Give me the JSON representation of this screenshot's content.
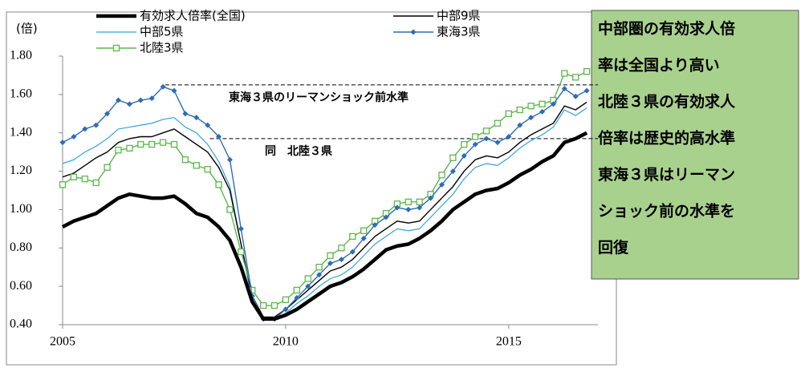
{
  "chart_data": {
    "type": "line",
    "y_label": "(倍)",
    "x": [
      2005,
      2005.25,
      2005.5,
      2005.75,
      2006,
      2006.25,
      2006.5,
      2006.75,
      2007,
      2007.25,
      2007.5,
      2007.75,
      2008,
      2008.25,
      2008.5,
      2008.75,
      2009,
      2009.25,
      2009.5,
      2009.75,
      2010,
      2010.25,
      2010.5,
      2010.75,
      2011,
      2011.25,
      2011.5,
      2011.75,
      2012,
      2012.25,
      2012.5,
      2012.75,
      2013,
      2013.25,
      2013.5,
      2013.75,
      2014,
      2014.25,
      2014.5,
      2014.75,
      2015,
      2015.25,
      2015.5,
      2015.75,
      2016,
      2016.25,
      2016.5,
      2016.75
    ],
    "xlim": [
      2005,
      2017
    ],
    "xticks": [
      2005,
      2010,
      2015
    ],
    "ylim": [
      0.4,
      1.8
    ],
    "yticks": [
      {
        "value": 0.4,
        "label": "0.40"
      },
      {
        "value": 0.6,
        "label": "0.60"
      },
      {
        "value": 0.8,
        "label": "0.80"
      },
      {
        "value": 1.0,
        "label": "1.00"
      },
      {
        "value": 1.2,
        "label": "1.20"
      },
      {
        "value": 1.4,
        "label": "1.40"
      },
      {
        "value": 1.6,
        "label": "1.60"
      },
      {
        "value": 1.8,
        "label": "1.80"
      }
    ],
    "series": [
      {
        "name": "有効求人倍率(全国)",
        "color": "#000000",
        "values": [
          0.91,
          0.94,
          0.96,
          0.98,
          1.02,
          1.06,
          1.08,
          1.07,
          1.06,
          1.06,
          1.07,
          1.03,
          0.98,
          0.96,
          0.91,
          0.84,
          0.7,
          0.52,
          0.43,
          0.43,
          0.45,
          0.48,
          0.52,
          0.56,
          0.6,
          0.62,
          0.65,
          0.69,
          0.74,
          0.79,
          0.81,
          0.82,
          0.85,
          0.89,
          0.94,
          1.0,
          1.04,
          1.08,
          1.1,
          1.11,
          1.14,
          1.18,
          1.21,
          1.25,
          1.28,
          1.35,
          1.37,
          1.4
        ]
      },
      {
        "name": "中部9県",
        "color": "#000000",
        "values": [
          1.17,
          1.19,
          1.23,
          1.27,
          1.3,
          1.35,
          1.37,
          1.38,
          1.38,
          1.4,
          1.42,
          1.38,
          1.34,
          1.3,
          1.22,
          1.1,
          0.82,
          0.55,
          0.44,
          0.44,
          0.48,
          0.53,
          0.58,
          0.63,
          0.68,
          0.7,
          0.74,
          0.8,
          0.86,
          0.9,
          0.94,
          0.93,
          0.94,
          1.0,
          1.06,
          1.12,
          1.2,
          1.26,
          1.28,
          1.27,
          1.3,
          1.35,
          1.39,
          1.42,
          1.45,
          1.54,
          1.52,
          1.56
        ]
      },
      {
        "name": "中部5県",
        "color": "#33a3dc",
        "values": [
          1.24,
          1.26,
          1.3,
          1.33,
          1.37,
          1.42,
          1.43,
          1.44,
          1.45,
          1.47,
          1.48,
          1.43,
          1.4,
          1.34,
          1.25,
          1.12,
          0.82,
          0.52,
          0.43,
          0.43,
          0.46,
          0.51,
          0.55,
          0.6,
          0.64,
          0.66,
          0.7,
          0.76,
          0.82,
          0.86,
          0.9,
          0.89,
          0.9,
          0.96,
          1.02,
          1.08,
          1.16,
          1.22,
          1.24,
          1.23,
          1.27,
          1.32,
          1.36,
          1.39,
          1.43,
          1.52,
          1.49,
          1.53
        ]
      },
      {
        "name": "東海3県",
        "color": "#2e6db4",
        "values": [
          1.35,
          1.38,
          1.42,
          1.44,
          1.5,
          1.57,
          1.55,
          1.57,
          1.58,
          1.64,
          1.62,
          1.5,
          1.48,
          1.44,
          1.38,
          1.26,
          0.9,
          0.55,
          0.43,
          0.43,
          0.48,
          0.54,
          0.6,
          0.66,
          0.72,
          0.74,
          0.78,
          0.85,
          0.92,
          0.96,
          1.01,
          1.0,
          1.01,
          1.06,
          1.13,
          1.2,
          1.28,
          1.34,
          1.37,
          1.35,
          1.38,
          1.44,
          1.48,
          1.51,
          1.55,
          1.63,
          1.59,
          1.62
        ]
      },
      {
        "name": "北陸3県",
        "color": "#5cb84a",
        "values": [
          1.13,
          1.17,
          1.16,
          1.14,
          1.22,
          1.31,
          1.32,
          1.34,
          1.34,
          1.35,
          1.34,
          1.26,
          1.23,
          1.21,
          1.13,
          1.0,
          0.78,
          0.58,
          0.5,
          0.5,
          0.53,
          0.58,
          0.64,
          0.7,
          0.76,
          0.8,
          0.86,
          0.89,
          0.94,
          0.98,
          1.03,
          1.04,
          1.04,
          1.08,
          1.18,
          1.27,
          1.34,
          1.38,
          1.41,
          1.45,
          1.5,
          1.52,
          1.54,
          1.55,
          1.57,
          1.71,
          1.69,
          1.72
        ]
      }
    ],
    "annotations": [
      {
        "text": "東海３県のリーマンショック前水準",
        "value": 1.65,
        "x_start": 2007.3
      },
      {
        "text": "同　北陸３県",
        "value": 1.37,
        "x_start": 2008.3
      }
    ],
    "note": [
      "中部圏の有効求人倍",
      "率は全国より高い",
      "北陸３県の有効求人",
      "倍率は歴史的高水準",
      "東海３県はリーマン",
      "ショック前の水準を",
      "回復"
    ]
  }
}
